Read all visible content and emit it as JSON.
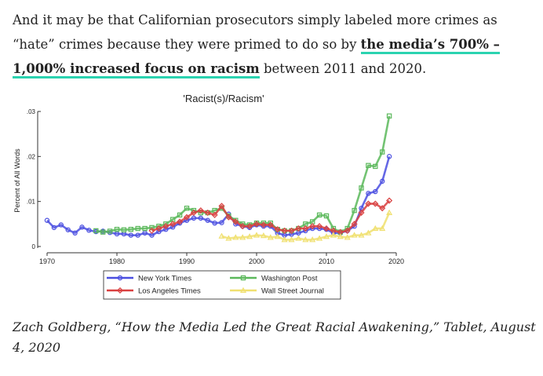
{
  "paragraph": {
    "text_before": "And it may be that Californian prosecutors simply labeled more crimes as “hate” crimes because they were primed to do so by ",
    "link_text": "the media’s 700% – 1,000% increased focus on racism",
    "text_after": " between 2011 and 2020."
  },
  "caption": {
    "text": "Zach Goldberg, “How the Media Led the Great Racial Awakening,” Tablet, August 4, 2020"
  },
  "chart_data": {
    "type": "line",
    "title": "'Racist(s)/Racism'",
    "xlabel": "",
    "ylabel": "Percent of All Words",
    "xlim": [
      1970,
      2020
    ],
    "ylim": [
      0,
      0.03
    ],
    "xticks": [
      "1970",
      "1980",
      "1990",
      "2000",
      "2010",
      "2020"
    ],
    "yticks": [
      "0",
      ".01",
      ".02",
      ".03"
    ],
    "legend_position": "bottom",
    "series": [
      {
        "name": "New York Times",
        "color": "#4a4ee0",
        "marker": "circle",
        "x": [
          1970,
          1971,
          1972,
          1973,
          1974,
          1975,
          1976,
          1977,
          1978,
          1979,
          1980,
          1981,
          1982,
          1983,
          1984,
          1985,
          1986,
          1987,
          1988,
          1989,
          1990,
          1991,
          1992,
          1993,
          1994,
          1995,
          1996,
          1997,
          1998,
          1999,
          2000,
          2001,
          2002,
          2003,
          2004,
          2005,
          2006,
          2007,
          2008,
          2009,
          2010,
          2011,
          2012,
          2013,
          2014,
          2015,
          2016,
          2017,
          2018,
          2019
        ],
        "y": [
          0.0058,
          0.0042,
          0.0048,
          0.0037,
          0.003,
          0.0043,
          0.0036,
          0.0033,
          0.0034,
          0.0031,
          0.0028,
          0.0028,
          0.0025,
          0.0025,
          0.003,
          0.0025,
          0.0033,
          0.0038,
          0.0043,
          0.0052,
          0.0058,
          0.0063,
          0.0063,
          0.0058,
          0.0052,
          0.0053,
          0.0072,
          0.005,
          0.0045,
          0.0042,
          0.0048,
          0.0045,
          0.0045,
          0.003,
          0.0025,
          0.0027,
          0.003,
          0.0035,
          0.004,
          0.004,
          0.0038,
          0.003,
          0.003,
          0.0035,
          0.0045,
          0.0085,
          0.0118,
          0.0122,
          0.0145,
          0.02
        ]
      },
      {
        "name": "Washington Post",
        "color": "#5bb85b",
        "marker": "square",
        "x": [
          1977,
          1978,
          1979,
          1980,
          1981,
          1982,
          1983,
          1984,
          1985,
          1986,
          1987,
          1988,
          1989,
          1990,
          1991,
          1992,
          1993,
          1994,
          1995,
          1996,
          1997,
          1998,
          1999,
          2000,
          2001,
          2002,
          2003,
          2004,
          2005,
          2006,
          2007,
          2008,
          2009,
          2010,
          2011,
          2012,
          2013,
          2014,
          2015,
          2016,
          2017,
          2018,
          2019
        ],
        "y": [
          0.0035,
          0.0032,
          0.0034,
          0.0038,
          0.0037,
          0.0038,
          0.004,
          0.004,
          0.0042,
          0.0045,
          0.005,
          0.006,
          0.007,
          0.0085,
          0.008,
          0.0075,
          0.0075,
          0.008,
          0.0085,
          0.0068,
          0.0058,
          0.005,
          0.0048,
          0.0052,
          0.0052,
          0.0052,
          0.0038,
          0.0035,
          0.0035,
          0.004,
          0.005,
          0.0055,
          0.007,
          0.0068,
          0.004,
          0.0032,
          0.004,
          0.008,
          0.013,
          0.018,
          0.0178,
          0.021,
          0.029
        ]
      },
      {
        "name": "Los Angeles Times",
        "color": "#d94040",
        "marker": "diamond",
        "x": [
          1985,
          1986,
          1987,
          1988,
          1989,
          1990,
          1991,
          1992,
          1993,
          1994,
          1995,
          1996,
          1997,
          1998,
          1999,
          2000,
          2001,
          2002,
          2003,
          2004,
          2005,
          2006,
          2007,
          2008,
          2009,
          2010,
          2011,
          2012,
          2013,
          2014,
          2015,
          2016,
          2017,
          2018,
          2019
        ],
        "y": [
          0.0035,
          0.004,
          0.0045,
          0.005,
          0.0055,
          0.0065,
          0.0075,
          0.008,
          0.0075,
          0.007,
          0.009,
          0.0065,
          0.0055,
          0.0045,
          0.0045,
          0.005,
          0.0048,
          0.0048,
          0.0038,
          0.0035,
          0.0035,
          0.004,
          0.004,
          0.0045,
          0.0045,
          0.004,
          0.0035,
          0.0032,
          0.0035,
          0.005,
          0.0075,
          0.0095,
          0.0095,
          0.0085,
          0.0102
        ]
      },
      {
        "name": "Wall Street Journal",
        "color": "#f0e070",
        "marker": "triangle",
        "x": [
          1995,
          1996,
          1997,
          1998,
          1999,
          2000,
          2001,
          2002,
          2003,
          2004,
          2005,
          2006,
          2007,
          2008,
          2009,
          2010,
          2011,
          2012,
          2013,
          2014,
          2015,
          2016,
          2017,
          2018,
          2019
        ],
        "y": [
          0.0023,
          0.0018,
          0.002,
          0.002,
          0.0022,
          0.0025,
          0.0024,
          0.002,
          0.0022,
          0.0015,
          0.0015,
          0.0018,
          0.0015,
          0.0015,
          0.0018,
          0.0022,
          0.0025,
          0.0022,
          0.002,
          0.0025,
          0.0025,
          0.003,
          0.004,
          0.004,
          0.0075
        ]
      }
    ]
  }
}
